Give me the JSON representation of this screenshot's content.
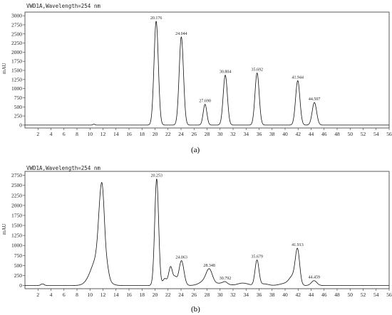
{
  "chart_data": [
    {
      "type": "line",
      "title": "VWD1A,Wavelength=254 nm",
      "ylabel": "mAU",
      "caption": "(a)",
      "xlim": [
        0,
        56
      ],
      "ylim": [
        -80,
        3100
      ],
      "x_ticks": [
        2,
        4,
        6,
        8,
        10,
        12,
        14,
        16,
        18,
        20,
        22,
        24,
        26,
        28,
        30,
        32,
        34,
        36,
        38,
        40,
        42,
        44,
        46,
        48,
        50,
        52,
        54,
        56
      ],
      "y_ticks": [
        0,
        250,
        500,
        750,
        1000,
        1250,
        1500,
        1750,
        2000,
        2250,
        2500,
        2750,
        3000
      ],
      "baseline": 0,
      "bumps": [
        {
          "x": 10.6,
          "height": 25,
          "width": 0.15
        }
      ],
      "peaks": [
        {
          "rt": 20.176,
          "label": "20.176",
          "height": 2850,
          "width": 0.33
        },
        {
          "rt": 24.044,
          "label": "24.044",
          "height": 2420,
          "width": 0.33
        },
        {
          "rt": 27.69,
          "label": "27.690",
          "height": 570,
          "width": 0.28
        },
        {
          "rt": 30.804,
          "label": "30.804",
          "height": 1370,
          "width": 0.32
        },
        {
          "rt": 35.692,
          "label": "35.692",
          "height": 1430,
          "width": 0.32
        },
        {
          "rt": 41.944,
          "label": "41.944",
          "height": 1220,
          "width": 0.33
        },
        {
          "rt": 44.507,
          "label": "44.507",
          "height": 620,
          "width": 0.34
        }
      ]
    },
    {
      "type": "line",
      "title": "VWD1A,Wavelength=254 nm",
      "ylabel": "mAU",
      "caption": "(b)",
      "xlim": [
        0,
        56
      ],
      "ylim": [
        -80,
        2850
      ],
      "x_ticks": [
        2,
        4,
        6,
        8,
        10,
        12,
        14,
        16,
        18,
        20,
        22,
        24,
        26,
        28,
        30,
        32,
        34,
        36,
        38,
        40,
        42,
        44,
        46,
        48,
        50,
        52,
        54,
        56
      ],
      "y_ticks": [
        0,
        250,
        500,
        750,
        1000,
        1250,
        1500,
        1750,
        2000,
        2250,
        2500,
        2750
      ],
      "baseline": 0,
      "bumps": [
        {
          "x": 2.7,
          "height": 40,
          "width": 0.25
        },
        {
          "x": 11.2,
          "height": 700,
          "width": 1.0
        },
        {
          "x": 11.6,
          "height": 1250,
          "width": 0.35
        },
        {
          "x": 12.0,
          "height": 1150,
          "width": 0.3
        },
        {
          "x": 12.6,
          "height": 250,
          "width": 0.3
        },
        {
          "x": 21.5,
          "height": 170,
          "width": 0.3
        },
        {
          "x": 22.4,
          "height": 470,
          "width": 0.3
        },
        {
          "x": 23.1,
          "height": 180,
          "width": 0.25
        },
        {
          "x": 28.0,
          "height": 150,
          "width": 0.9
        },
        {
          "x": 30.5,
          "height": 60,
          "width": 0.7
        },
        {
          "x": 33.5,
          "height": 60,
          "width": 0.8
        },
        {
          "x": 36.8,
          "height": 40,
          "width": 0.6
        },
        {
          "x": 40.0,
          "height": 50,
          "width": 0.8
        },
        {
          "x": 41.2,
          "height": 220,
          "width": 0.55
        }
      ],
      "peaks": [
        {
          "rt": 20.253,
          "label": "20.253",
          "height": 2660,
          "width": 0.3
        },
        {
          "rt": 24.063,
          "label": "24.063",
          "height": 620,
          "width": 0.38
        },
        {
          "rt": 28.348,
          "label": "28.348",
          "height": 280,
          "width": 0.45
        },
        {
          "rt": 30.792,
          "label": "30.792",
          "height": 40,
          "width": 0.3
        },
        {
          "rt": 35.679,
          "label": "35.679",
          "height": 630,
          "width": 0.3
        },
        {
          "rt": 41.913,
          "label": "41.913",
          "height": 830,
          "width": 0.33
        },
        {
          "rt": 44.459,
          "label": "44.459",
          "height": 120,
          "width": 0.42
        }
      ]
    }
  ]
}
